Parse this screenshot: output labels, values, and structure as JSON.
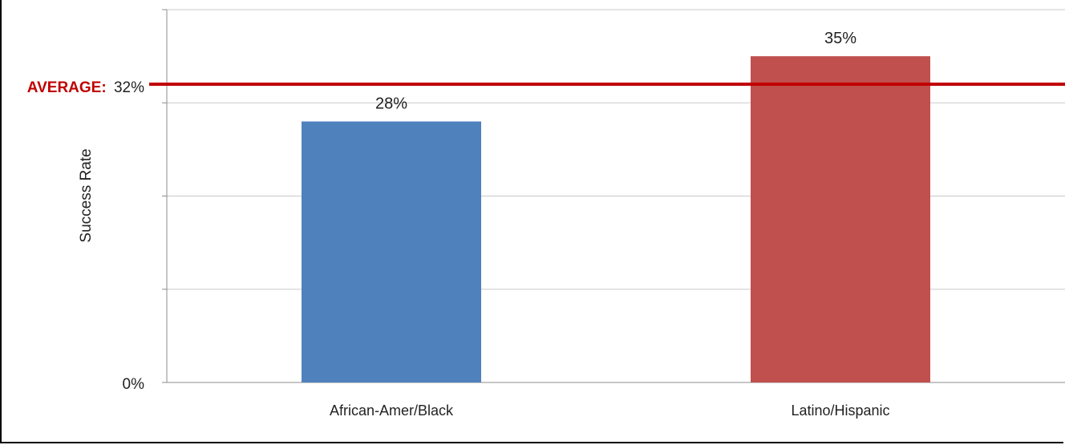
{
  "chart_data": {
    "type": "bar",
    "categories": [
      "African-Amer/Black",
      "Latino/Hispanic"
    ],
    "values": [
      28,
      35
    ],
    "value_labels": [
      "28%",
      "35%"
    ],
    "colors": [
      "#4f81bd",
      "#c0504d"
    ],
    "ylabel": "Success Rate",
    "ylim": [
      0,
      40
    ],
    "y_tick_labels": {
      "zero": "0%"
    },
    "grid": true,
    "reference_line": {
      "label": "AVERAGE:",
      "value_label": "32%",
      "value": 32,
      "color": "#c00000"
    }
  }
}
